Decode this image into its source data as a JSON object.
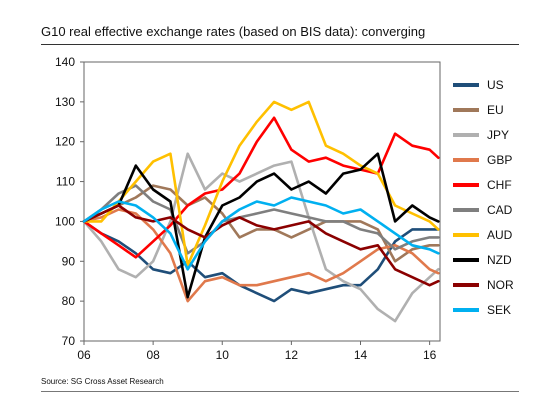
{
  "title": "G10 real effective exchange rates (based on BIS data): converging",
  "source": "Source: SG Cross Asset Research",
  "chart_data": {
    "type": "line",
    "title": "G10 real effective exchange rates (based on BIS data): converging",
    "xlabel": "",
    "ylabel": "",
    "xlim": [
      2006,
      2016.3
    ],
    "ylim": [
      70,
      140
    ],
    "x_ticks": [
      2006,
      2008,
      2010,
      2012,
      2014,
      2016
    ],
    "x_tick_labels": [
      "06",
      "08",
      "10",
      "12",
      "14",
      "16"
    ],
    "y_ticks": [
      70,
      80,
      90,
      100,
      110,
      120,
      130,
      140
    ],
    "y_tick_labels": [
      "70",
      "80",
      "90",
      "100",
      "110",
      "120",
      "130",
      "140"
    ],
    "grid": false,
    "legend_position": "right",
    "x": [
      2006.0,
      2006.5,
      2007.0,
      2007.5,
      2008.0,
      2008.5,
      2009.0,
      2009.5,
      2010.0,
      2010.5,
      2011.0,
      2011.5,
      2012.0,
      2012.5,
      2013.0,
      2013.5,
      2014.0,
      2014.5,
      2015.0,
      2015.5,
      2016.0,
      2016.25
    ],
    "series": [
      {
        "name": "US",
        "color": "#1f4e79",
        "values": [
          100,
          97,
          95,
          92,
          88,
          87,
          90,
          86,
          87,
          84,
          82,
          80,
          83,
          82,
          83,
          84,
          84,
          88,
          95,
          98,
          98,
          98
        ]
      },
      {
        "name": "EU",
        "color": "#a0785a",
        "values": [
          100,
          102,
          104,
          106,
          109,
          108,
          104,
          106,
          102,
          96,
          98,
          98,
          96,
          98,
          100,
          100,
          100,
          98,
          90,
          93,
          94,
          94
        ]
      },
      {
        "name": "JPY",
        "color": "#b0b0b0",
        "values": [
          100,
          95,
          88,
          86,
          90,
          100,
          117,
          108,
          112,
          110,
          112,
          114,
          115,
          101,
          88,
          85,
          83,
          78,
          75,
          82,
          86,
          88
        ]
      },
      {
        "name": "GBP",
        "color": "#e0794c",
        "values": [
          100,
          101,
          103,
          102,
          98,
          92,
          80,
          85,
          86,
          84,
          84,
          85,
          86,
          87,
          85,
          87,
          90,
          93,
          94,
          92,
          88,
          87
        ]
      },
      {
        "name": "CHF",
        "color": "#ff0000",
        "values": [
          100,
          97,
          94,
          91,
          95,
          99,
          104,
          107,
          108,
          112,
          120,
          126,
          118,
          115,
          116,
          114,
          113,
          112,
          122,
          119,
          118,
          116
        ]
      },
      {
        "name": "CAD",
        "color": "#7f7f7f",
        "values": [
          100,
          103,
          107,
          109,
          105,
          103,
          92,
          95,
          100,
          101,
          102,
          103,
          102,
          101,
          100,
          100,
          98,
          97,
          93,
          95,
          96,
          96
        ]
      },
      {
        "name": "AUD",
        "color": "#ffc000",
        "values": [
          100,
          100,
          105,
          110,
          115,
          117,
          89,
          99,
          110,
          119,
          125,
          130,
          128,
          130,
          119,
          117,
          114,
          112,
          104,
          102,
          100,
          98
        ]
      },
      {
        "name": "NZD",
        "color": "#000000",
        "values": [
          100,
          102,
          104,
          114,
          108,
          105,
          81,
          96,
          104,
          106,
          110,
          112,
          108,
          110,
          107,
          112,
          113,
          117,
          100,
          104,
          101,
          100
        ]
      },
      {
        "name": "NOR",
        "color": "#8b0000",
        "values": [
          100,
          102,
          104,
          101,
          100,
          101,
          98,
          96,
          99,
          101,
          99,
          98,
          99,
          100,
          97,
          95,
          93,
          94,
          88,
          86,
          84,
          85
        ]
      },
      {
        "name": "SEK",
        "color": "#00b0f0",
        "values": [
          100,
          103,
          105,
          104,
          101,
          97,
          88,
          95,
          100,
          103,
          105,
          104,
          106,
          105,
          104,
          102,
          103,
          100,
          97,
          94,
          93,
          92
        ]
      }
    ]
  }
}
